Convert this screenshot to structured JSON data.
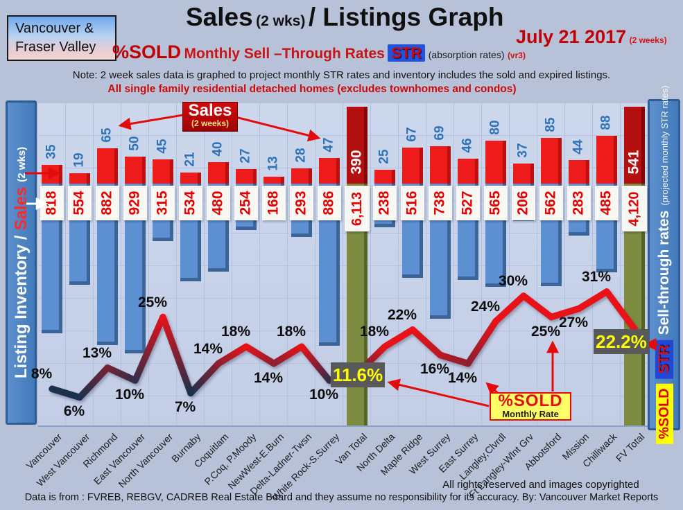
{
  "header": {
    "region_line1": "Vancouver &",
    "region_line2": "Fraser Valley",
    "title_sales": "Sales",
    "title_wks": "(2 wks)",
    "title_rest": "/ Listings Graph",
    "date": "July 21 2017",
    "date_note": "(2 weeks)",
    "sub_pctsold": "%SOLD",
    "sub_rates": "Monthly Sell –Through Rates",
    "sub_str": "STR",
    "sub_absorption": "(absorption rates)",
    "sub_version": "(vr3)",
    "note": "Note: 2 week sales data is graphed to project monthly STR rates and inventory includes the sold and expired listings.",
    "scope": "All single family residential detached homes (excludes townhomes and condos)"
  },
  "left_axis": {
    "label_inventory": "Listing Inventory /",
    "label_sales": "Sales",
    "label_wks": "(2  wks)"
  },
  "right_axis": {
    "title": "Sell-through rates",
    "subtitle": "(projected monthly STR rates)",
    "str_badge": "STR",
    "pctsold_badge": "%SOLD"
  },
  "annotations": {
    "sales_callout_title": "Sales",
    "sales_callout_sub": "(2 weeks)",
    "pctsold_callout_title": "%SOLD",
    "pctsold_callout_sub": "Monthly Rate",
    "van_total_rate": "11.6%",
    "fv_total_rate": "22.2%"
  },
  "footer": {
    "rights": "All rights reserved and  images copyrighted",
    "source": "Data is from : FVREB, REBGV, CADREB Real Estate Board and they assume no responsibility for its accuracy. By: Vancouver Market Reports"
  },
  "chart_data": {
    "type": "bar",
    "subtype": "combo bar + line (sales bars up, inventory bars down, STR % line)",
    "categories": [
      "Vancouver",
      "West Vancouver",
      "Richmond",
      "East Vancouver",
      "North Vancouver",
      "Burnaby",
      "Coquitlam",
      "P.Coq, P.Moody",
      "NewWest-E.Burn",
      "Delta-Ladner-Twsn",
      "White Rock-S.Surrey",
      "Van Total",
      "North Delta",
      "Maple Ridge",
      "West Surrey",
      "East Surrey",
      "Langley,Clvrdl",
      "Ft Langley-Wlnt Grv",
      "Abbotsford",
      "Mission",
      "Chilliwack",
      "FV Total"
    ],
    "series": [
      {
        "name": "Sales (2 weeks)",
        "values": [
          35,
          19,
          65,
          50,
          45,
          21,
          40,
          27,
          13,
          28,
          47,
          390,
          25,
          67,
          69,
          46,
          80,
          37,
          85,
          44,
          88,
          541
        ]
      },
      {
        "name": "Listing Inventory (2 wks)",
        "values": [
          818,
          554,
          882,
          929,
          315,
          534,
          480,
          254,
          168,
          293,
          886,
          6113,
          238,
          516,
          738,
          527,
          565,
          206,
          562,
          283,
          485,
          4120
        ]
      },
      {
        "name": "%SOLD Monthly Sell-Through Rate",
        "values": [
          8,
          6,
          13,
          10,
          25,
          7,
          14,
          18,
          14,
          18,
          10,
          11.6,
          18,
          22,
          16,
          14,
          24,
          30,
          25,
          27,
          31,
          22.2
        ]
      }
    ],
    "total_column_indices": [
      11,
      21
    ],
    "pct_label_side": [
      "above",
      "below",
      "above",
      "below",
      "above",
      "below",
      "above",
      "above",
      "below",
      "above",
      "below",
      "box",
      "above",
      "above",
      "below",
      "below",
      "above",
      "above",
      "below",
      "below",
      "above",
      "box"
    ],
    "legend_position": "axis sidebars",
    "grid": true
  },
  "colors": {
    "sales_red": "#ee1b1b",
    "total_dark_red": "#b51010",
    "inventory_blue": "#5d90d3",
    "total_green": "#7d8c41",
    "line_red": "#e81218",
    "line_navy": "#1b304d",
    "value_blue": "#2e73b8",
    "value_red": "#e00000",
    "highlight_yellow": "#ffff00",
    "rate_box_gray": "#595959",
    "arrow_red": "#e30b0b"
  }
}
